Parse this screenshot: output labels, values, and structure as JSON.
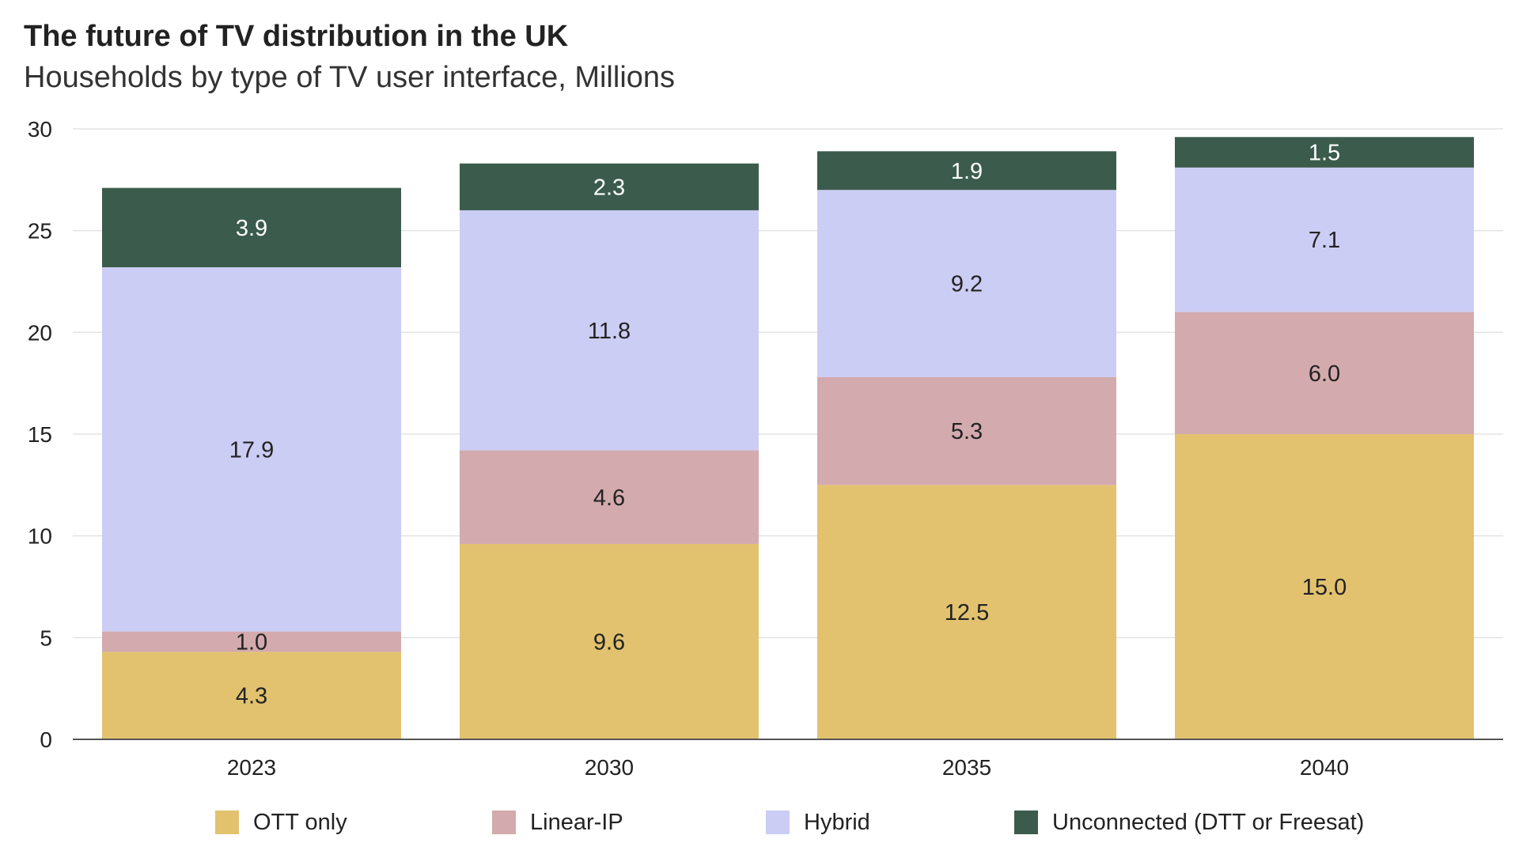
{
  "chart_data": {
    "type": "bar",
    "stacked": true,
    "title": "The future of TV distribution in the UK",
    "subtitle": "Households by type of TV user interface, Millions",
    "categories": [
      "2023",
      "2030",
      "2035",
      "2040"
    ],
    "series": [
      {
        "name": "OTT only",
        "color": "#e2c26f",
        "values": [
          4.3,
          9.6,
          12.5,
          15.0
        ],
        "labels": [
          "4.3",
          "9.6",
          "12.5",
          "15.0"
        ]
      },
      {
        "name": "Linear-IP",
        "color": "#d3aaad",
        "values": [
          1.0,
          4.6,
          5.3,
          6.0
        ],
        "labels": [
          "1.0",
          "4.6",
          "5.3",
          "6.0"
        ]
      },
      {
        "name": "Hybrid",
        "color": "#cccdf4",
        "values": [
          17.9,
          11.8,
          9.2,
          7.1
        ],
        "labels": [
          "17.9",
          "11.8",
          "9.2",
          "7.1"
        ]
      },
      {
        "name": "Unconnected (DTT or Freesat)",
        "color": "#3b5c4c",
        "values": [
          3.9,
          2.3,
          1.9,
          1.5
        ],
        "labels": [
          "3.9",
          "2.3",
          "1.9",
          "1.5"
        ]
      }
    ],
    "ylim": [
      0,
      30
    ],
    "yticks": [
      0,
      5,
      10,
      15,
      20,
      25,
      30
    ],
    "grid": true,
    "legend_position": "bottom"
  }
}
